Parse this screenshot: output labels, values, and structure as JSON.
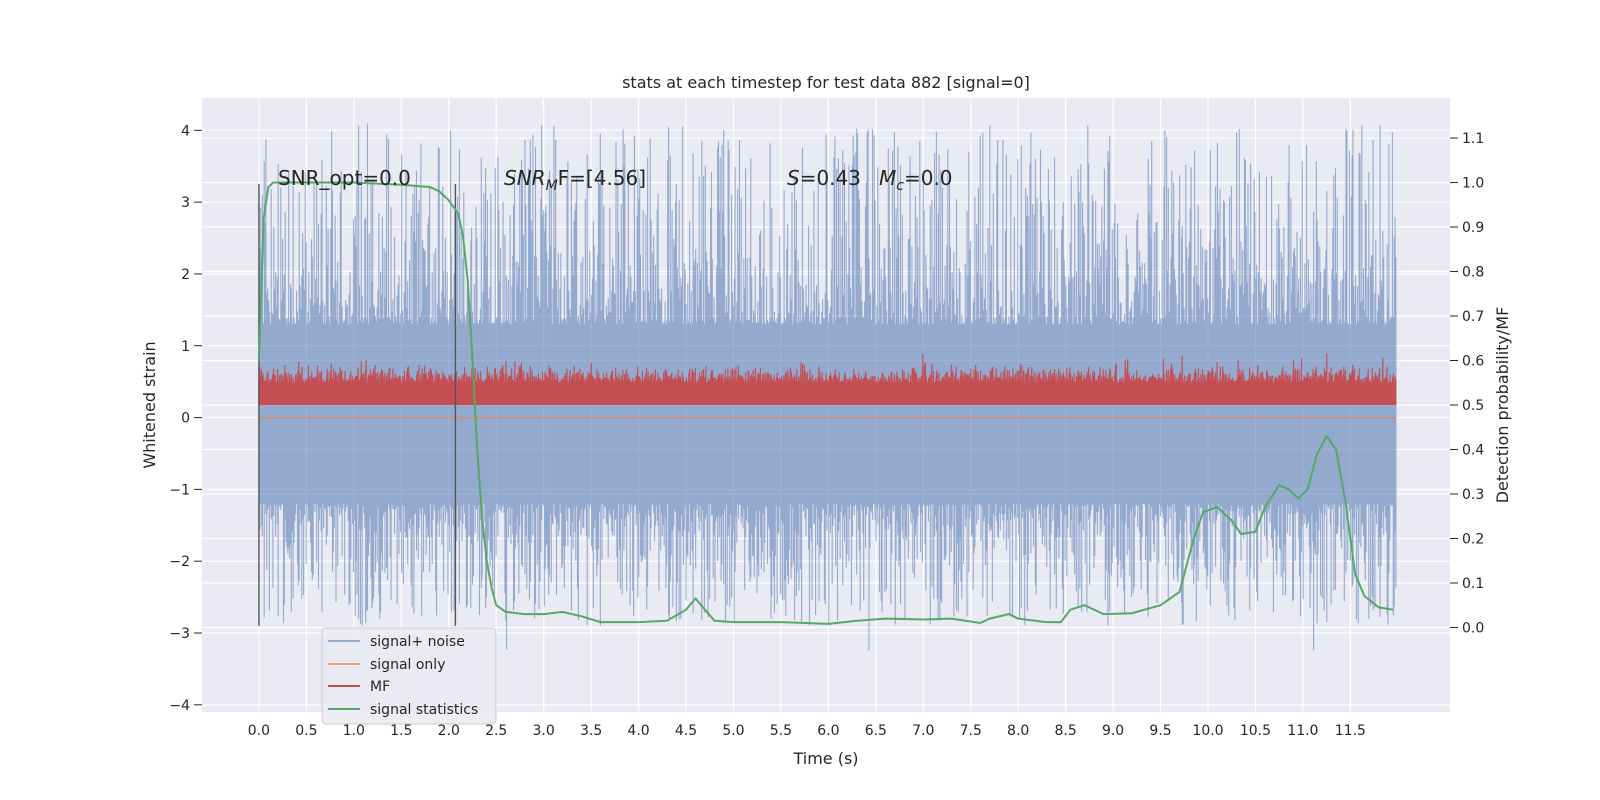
{
  "chart_data": {
    "type": "line",
    "title": "stats at each timestep for test data 882 [signal=0]",
    "xlabel": "Time (s)",
    "ylabel_left": "Whitened strain",
    "ylabel_right": "Detection probability/MF",
    "xlim": [
      -0.6,
      12.55
    ],
    "ylim_left": [
      -4.1,
      4.45
    ],
    "ylim_right": [
      -0.19,
      1.19
    ],
    "x_ticks": [
      "0.0",
      "0.5",
      "1.0",
      "1.5",
      "2.0",
      "2.5",
      "3.0",
      "3.5",
      "4.0",
      "4.5",
      "5.0",
      "5.5",
      "6.0",
      "6.5",
      "7.0",
      "7.5",
      "8.0",
      "8.5",
      "9.0",
      "9.5",
      "10.0",
      "10.5",
      "11.0",
      "11.5"
    ],
    "left_ticks": [
      "4",
      "3",
      "2",
      "1",
      "0",
      "−1",
      "−2",
      "−3",
      "−4"
    ],
    "right_ticks": [
      "1.1",
      "1.0",
      "0.9",
      "0.8",
      "0.7",
      "0.6",
      "0.5",
      "0.4",
      "0.3",
      "0.2",
      "0.1",
      "0.0"
    ],
    "grid": true,
    "legend_position": "lower-left",
    "colors": {
      "background": "#eaeaf2",
      "grid": "#ffffff",
      "signal_noise": "#4c72b0",
      "signal_only": "#dd8452",
      "mf": "#c44e52",
      "signal_statistics": "#55a868",
      "window_lines": "#555555"
    },
    "series": [
      {
        "name": "signal+ noise",
        "axis": "left",
        "kind": "noise",
        "x_range": [
          0,
          11.98
        ],
        "lower_envelope": [
          -2.9,
          -1.2
        ],
        "upper_envelope": [
          1.3,
          4.1
        ]
      },
      {
        "name": "signal only",
        "axis": "left",
        "kind": "flat",
        "x_range": [
          0,
          11.98
        ],
        "value": 0
      },
      {
        "name": "MF",
        "axis": "right",
        "kind": "noise",
        "x_range": [
          0,
          11.98
        ],
        "lower_envelope": [
          0.5,
          0.5
        ],
        "upper_envelope": [
          0.55,
          0.64
        ]
      },
      {
        "name": "signal statistics",
        "axis": "right",
        "x": [
          0.0,
          0.05,
          0.1,
          0.15,
          0.2,
          0.5,
          1.0,
          1.5,
          1.8,
          1.9,
          2.0,
          2.1,
          2.15,
          2.2,
          2.25,
          2.3,
          2.35,
          2.4,
          2.45,
          2.5,
          2.6,
          2.8,
          3.0,
          3.2,
          3.4,
          3.6,
          4.0,
          4.3,
          4.5,
          4.6,
          4.7,
          4.8,
          5.0,
          5.5,
          6.0,
          6.3,
          6.6,
          7.0,
          7.3,
          7.6,
          7.7,
          7.9,
          8.0,
          8.3,
          8.45,
          8.55,
          8.7,
          8.9,
          9.2,
          9.5,
          9.7,
          9.85,
          9.95,
          10.1,
          10.25,
          10.35,
          10.5,
          10.6,
          10.75,
          10.85,
          10.95,
          11.05,
          11.15,
          11.25,
          11.35,
          11.45,
          11.55,
          11.65,
          11.8,
          11.95
        ],
        "y": [
          0.6,
          0.92,
          0.99,
          1.0,
          1.0,
          1.0,
          1.0,
          0.995,
          0.99,
          0.98,
          0.96,
          0.93,
          0.88,
          0.78,
          0.6,
          0.4,
          0.25,
          0.15,
          0.09,
          0.05,
          0.035,
          0.03,
          0.03,
          0.035,
          0.025,
          0.012,
          0.012,
          0.015,
          0.04,
          0.065,
          0.04,
          0.015,
          0.012,
          0.012,
          0.008,
          0.015,
          0.02,
          0.018,
          0.02,
          0.01,
          0.02,
          0.03,
          0.02,
          0.012,
          0.012,
          0.04,
          0.05,
          0.03,
          0.032,
          0.05,
          0.08,
          0.2,
          0.26,
          0.27,
          0.24,
          0.21,
          0.215,
          0.27,
          0.32,
          0.31,
          0.29,
          0.31,
          0.39,
          0.43,
          0.4,
          0.28,
          0.12,
          0.07,
          0.045,
          0.04
        ]
      }
    ],
    "window_markers_x": [
      0.0,
      2.07
    ],
    "annotations": {
      "snr_opt": "SNR_opt=0.0",
      "snr_mf_base": "SNR",
      "snr_mf_sub": "M",
      "snr_mf_rest": "F=[4.56]",
      "stat_s": "S",
      "stat_s_rest": "=0.43",
      "stat_m": "M",
      "stat_m_sub": "c",
      "stat_m_rest": "=0.0"
    }
  }
}
